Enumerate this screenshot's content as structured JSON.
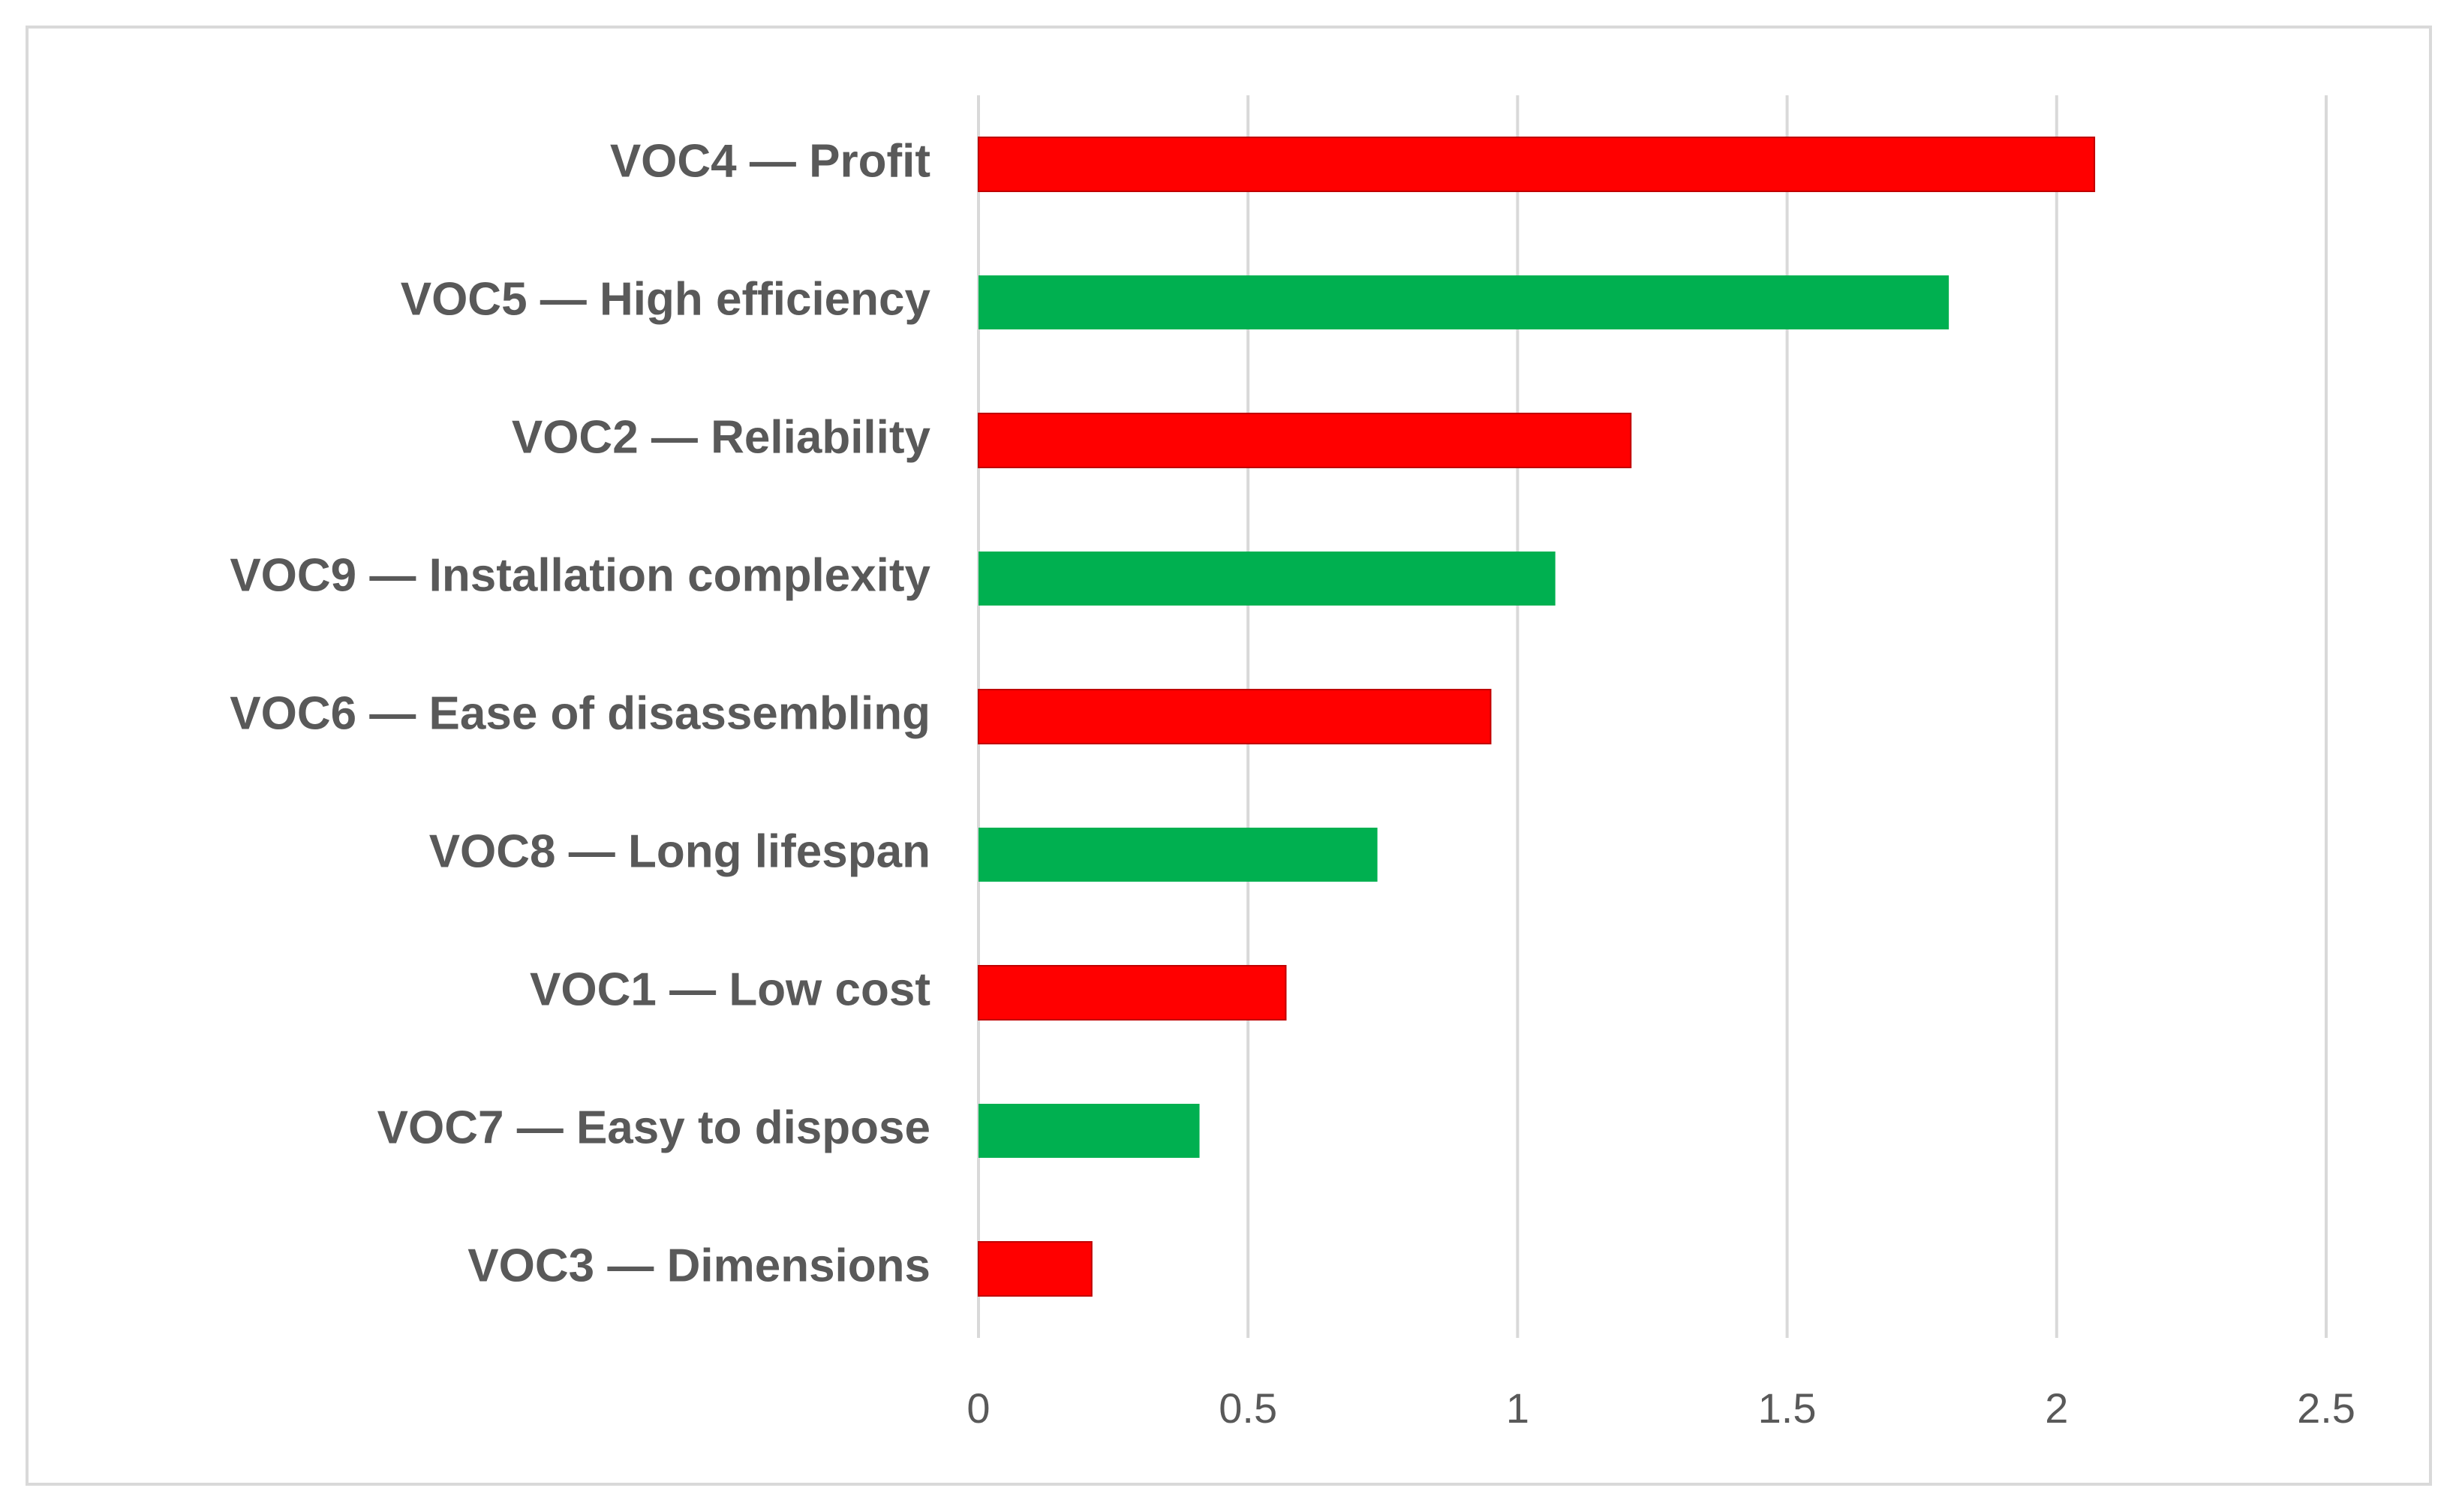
{
  "chart_data": {
    "type": "barh",
    "categories": [
      "VOC4 — Profit",
      "VOC5 — High efficiency",
      "VOC2 — Reliability",
      "VOC9 — Installation complexity",
      "VOC6 — Ease of disassembling",
      "VOC8 — Long lifespan",
      "VOC1 — Low cost",
      "VOC7 — Easy to dispose",
      "VOC3 — Dimensions"
    ],
    "values": [
      2.07,
      1.8,
      1.21,
      1.07,
      0.95,
      0.74,
      0.57,
      0.41,
      0.21
    ],
    "colors": [
      "#ff0000",
      "#00b050",
      "#ff0000",
      "#00b050",
      "#ff0000",
      "#00b050",
      "#ff0000",
      "#00b050",
      "#ff0000"
    ],
    "xlim": [
      0,
      2.5
    ],
    "xticks": [
      0,
      0.5,
      1,
      1.5,
      2,
      2.5
    ],
    "grid": true
  }
}
